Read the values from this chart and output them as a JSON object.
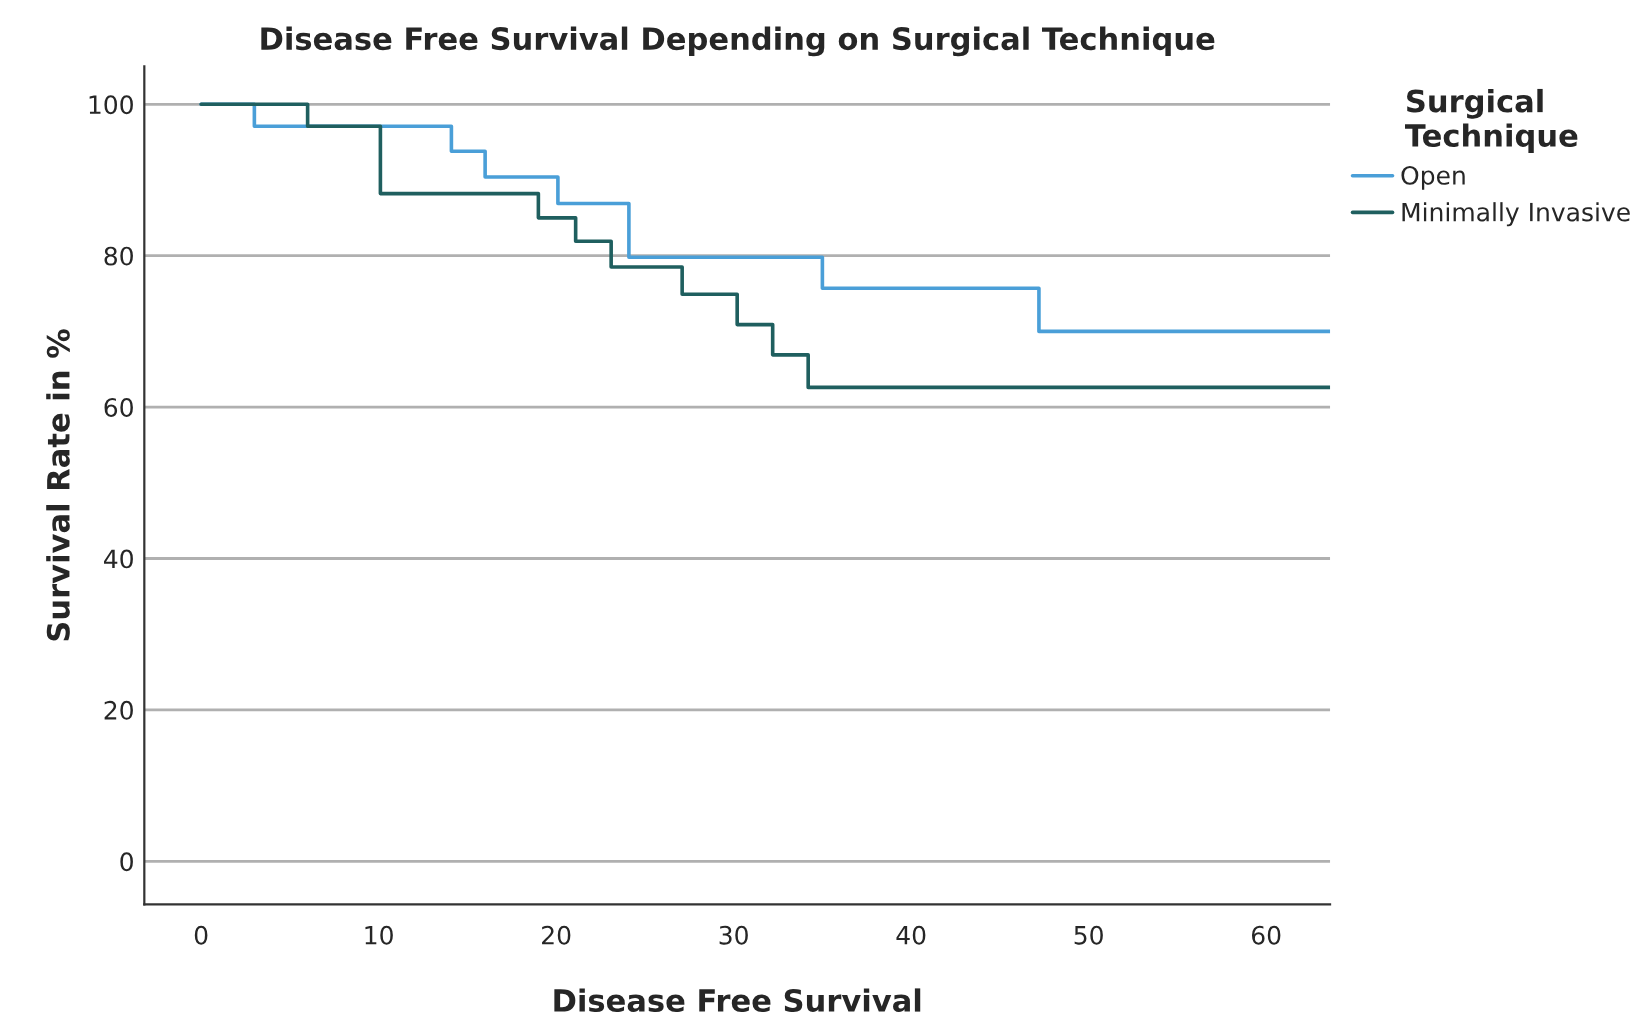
{
  "chart_data": {
    "type": "step",
    "title": "Disease Free Survival Depending on Surgical Technique",
    "xlabel": "Disease Free Survival",
    "ylabel": "Survival Rate in %",
    "legend_title": "Surgical\nTechnique",
    "xlim": [
      -3.2,
      63.6
    ],
    "xticks": [
      0,
      10,
      20,
      30,
      40,
      50,
      60
    ],
    "ylim": [
      -5.7,
      105
    ],
    "yticks": [
      0,
      20,
      40,
      60,
      80,
      100
    ],
    "grid": "y",
    "legend": "top right",
    "series": [
      {
        "name": "Open",
        "color": "#4a9fd8",
        "x": [
          0,
          3.0,
          14.1,
          16.0,
          20.1,
          24.1,
          35.0,
          47.2,
          63.6
        ],
        "values": [
          100,
          97.1,
          93.8,
          90.4,
          86.9,
          79.8,
          75.7,
          70.0,
          70.0
        ]
      },
      {
        "name": "Minimally Invasive",
        "color": "#1f5f5f",
        "x": [
          0,
          6.0,
          10.1,
          19.0,
          21.1,
          23.1,
          27.1,
          30.2,
          32.2,
          34.2,
          63.6
        ],
        "values": [
          100,
          97.1,
          88.2,
          85.0,
          81.9,
          78.5,
          74.9,
          70.9,
          66.9,
          62.6,
          62.6
        ]
      }
    ]
  }
}
